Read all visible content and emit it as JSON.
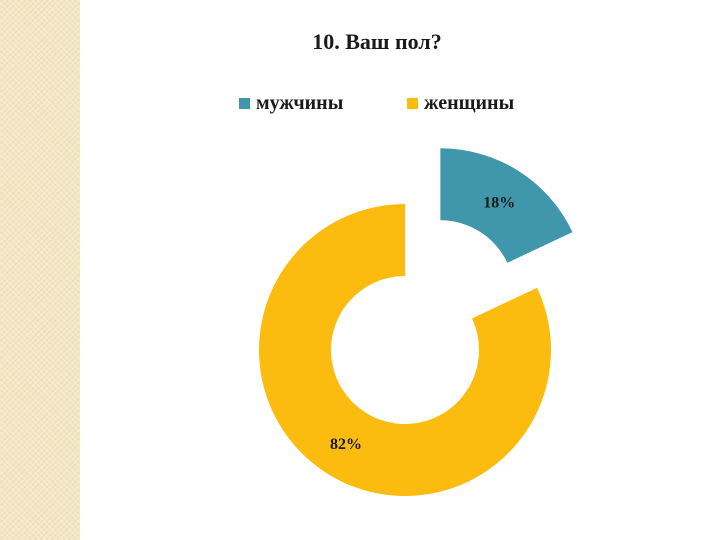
{
  "chart_data": {
    "type": "pie",
    "style": "doughnut",
    "title": "10.  Ваш пол?",
    "legend_position": "top",
    "categories": [
      "мужчины",
      "женщины"
    ],
    "values": [
      18,
      82
    ],
    "data_labels": [
      "18%",
      "82%"
    ],
    "colors": [
      "#4096ab",
      "#fbbc0f"
    ],
    "exploded_slice": "мужчины"
  }
}
